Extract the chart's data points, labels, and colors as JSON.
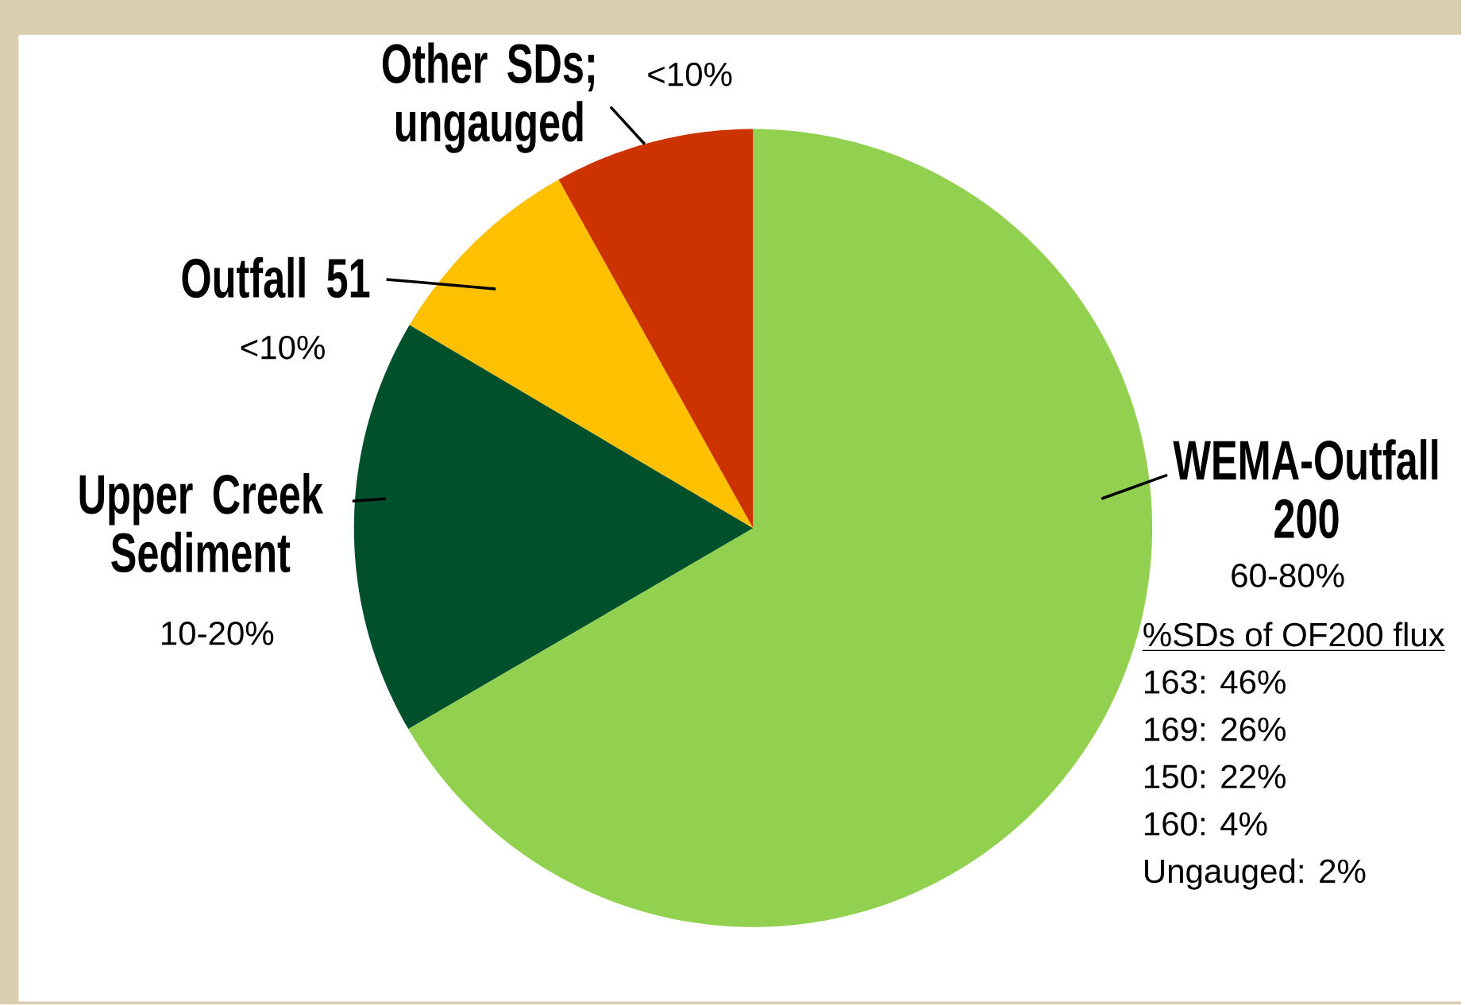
{
  "chart_data": {
    "type": "pie",
    "categories": [
      "WEMA-Outfall 200",
      "Upper Creek Sediment",
      "Outfall 51",
      "Other SDs; ungauged"
    ],
    "values": [
      66.6,
      16.9,
      8.4,
      8.1
    ],
    "colors": [
      "#92d050",
      "#00502c",
      "#ffc000",
      "#cc3300"
    ],
    "annotations": [
      "60-80%",
      "10-20%",
      "<10%",
      "<10%",
      "%SDs of OF200 flux",
      "163: 46%",
      "169: 26%",
      "150: 22%",
      "160: 4%",
      "Ungauged: 2%"
    ]
  }
}
